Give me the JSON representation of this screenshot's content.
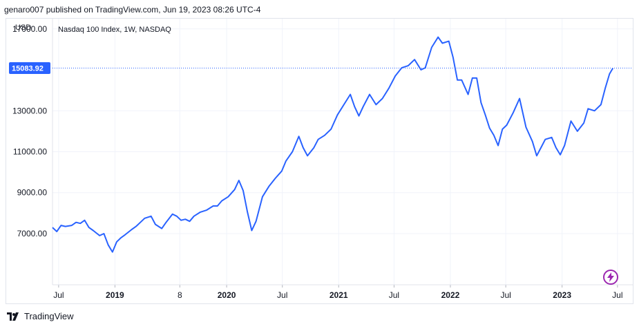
{
  "header": {
    "published_line": "genaro007 published on TradingView.com, Jun 19, 2023 08:26 UTC-4"
  },
  "footer": {
    "brand": "TradingView",
    "logo_icon": "tradingview-logo-icon"
  },
  "colors": {
    "line": "#2962ff",
    "price_badge": "#2962ff",
    "grid": "#f0f3fa",
    "text": "#131722",
    "accent_icon": "#9c27b0"
  },
  "chart_data": {
    "type": "line",
    "title": "Nasdaq 100 Index, 1W, NASDAQ",
    "currency_label": "USD",
    "last_price_label": "15083.92",
    "last_price": 15083.92,
    "ylim": [
      4500,
      17500
    ],
    "y_ticks": [
      {
        "label": "17000.00",
        "value": 17000
      },
      {
        "label": "13000.00",
        "value": 13000
      },
      {
        "label": "11000.00",
        "value": 11000
      },
      {
        "label": "9000.00",
        "value": 9000
      },
      {
        "label": "7000.00",
        "value": 7000
      }
    ],
    "x_ticks": [
      {
        "label": "Jul",
        "x": "2018-07"
      },
      {
        "label": "2019",
        "x": "2019-01"
      },
      {
        "label": "8",
        "x": "2019-08"
      },
      {
        "label": "2020",
        "x": "2020-01"
      },
      {
        "label": "Jul",
        "x": "2020-07"
      },
      {
        "label": "2021",
        "x": "2021-01"
      },
      {
        "label": "Jul",
        "x": "2021-07"
      },
      {
        "label": "2022",
        "x": "2022-01"
      },
      {
        "label": "Jul",
        "x": "2022-07"
      },
      {
        "label": "2023",
        "x": "2023-01"
      },
      {
        "label": "Jul",
        "x": "2023-07"
      }
    ],
    "xlim": [
      "2018-06-11",
      "2023-08-20"
    ],
    "series": [
      {
        "x": [
          "2018-06-11",
          "2018-06-25",
          "2018-07-09",
          "2018-07-23",
          "2018-08-13",
          "2018-08-27",
          "2018-09-10",
          "2018-09-24",
          "2018-10-08",
          "2018-10-22",
          "2018-11-12",
          "2018-11-26",
          "2018-12-10",
          "2018-12-24",
          "2019-01-07",
          "2019-01-21",
          "2019-02-04",
          "2019-02-25",
          "2019-03-11",
          "2019-03-25",
          "2019-04-08",
          "2019-04-29",
          "2019-05-13",
          "2019-06-03",
          "2019-06-17",
          "2019-07-08",
          "2019-07-22",
          "2019-08-05",
          "2019-08-19",
          "2019-09-02",
          "2019-09-16",
          "2019-10-07",
          "2019-10-28",
          "2019-11-18",
          "2019-12-02",
          "2019-12-16",
          "2020-01-06",
          "2020-01-27",
          "2020-02-10",
          "2020-02-24",
          "2020-03-09",
          "2020-03-23",
          "2020-04-06",
          "2020-04-27",
          "2020-05-18",
          "2020-06-08",
          "2020-06-29",
          "2020-07-13",
          "2020-08-03",
          "2020-08-24",
          "2020-09-07",
          "2020-09-21",
          "2020-10-12",
          "2020-10-26",
          "2020-11-16",
          "2020-12-07",
          "2020-12-28",
          "2021-01-18",
          "2021-02-08",
          "2021-02-22",
          "2021-03-08",
          "2021-03-22",
          "2021-04-12",
          "2021-05-03",
          "2021-05-24",
          "2021-06-14",
          "2021-07-05",
          "2021-07-26",
          "2021-08-16",
          "2021-09-06",
          "2021-09-27",
          "2021-10-11",
          "2021-11-01",
          "2021-11-22",
          "2021-12-06",
          "2021-12-27",
          "2022-01-10",
          "2022-01-24",
          "2022-02-07",
          "2022-02-28",
          "2022-03-14",
          "2022-03-28",
          "2022-04-11",
          "2022-04-25",
          "2022-05-09",
          "2022-05-23",
          "2022-06-06",
          "2022-06-20",
          "2022-07-04",
          "2022-07-25",
          "2022-08-15",
          "2022-09-05",
          "2022-09-26",
          "2022-10-10",
          "2022-10-24",
          "2022-11-07",
          "2022-11-28",
          "2022-12-12",
          "2022-12-26",
          "2023-01-09",
          "2023-01-30",
          "2023-02-20",
          "2023-03-13",
          "2023-03-27",
          "2023-04-17",
          "2023-05-08",
          "2023-05-22",
          "2023-06-05",
          "2023-06-16"
        ],
        "y": [
          7300,
          7100,
          7400,
          7350,
          7400,
          7550,
          7500,
          7650,
          7300,
          7150,
          6900,
          7000,
          6450,
          6100,
          6600,
          6800,
          6950,
          7200,
          7350,
          7550,
          7750,
          7850,
          7450,
          7250,
          7550,
          7950,
          7850,
          7650,
          7700,
          7600,
          7850,
          8050,
          8150,
          8350,
          8350,
          8600,
          8800,
          9150,
          9600,
          9100,
          8050,
          7150,
          7600,
          8800,
          9300,
          9700,
          10050,
          10550,
          11000,
          11750,
          11200,
          10800,
          11200,
          11600,
          11800,
          12100,
          12800,
          13300,
          13800,
          13200,
          12750,
          13200,
          13800,
          13300,
          13600,
          14100,
          14700,
          15100,
          15200,
          15500,
          15000,
          15100,
          16100,
          16600,
          16300,
          16400,
          15600,
          14500,
          14500,
          13800,
          14600,
          14600,
          13400,
          12800,
          12150,
          11800,
          11300,
          12100,
          12300,
          12900,
          13600,
          12200,
          11500,
          10800,
          11200,
          11600,
          11700,
          11200,
          10850,
          11300,
          12500,
          12000,
          12400,
          13100,
          13000,
          13300,
          14100,
          14800,
          15083.92
        ]
      }
    ]
  }
}
